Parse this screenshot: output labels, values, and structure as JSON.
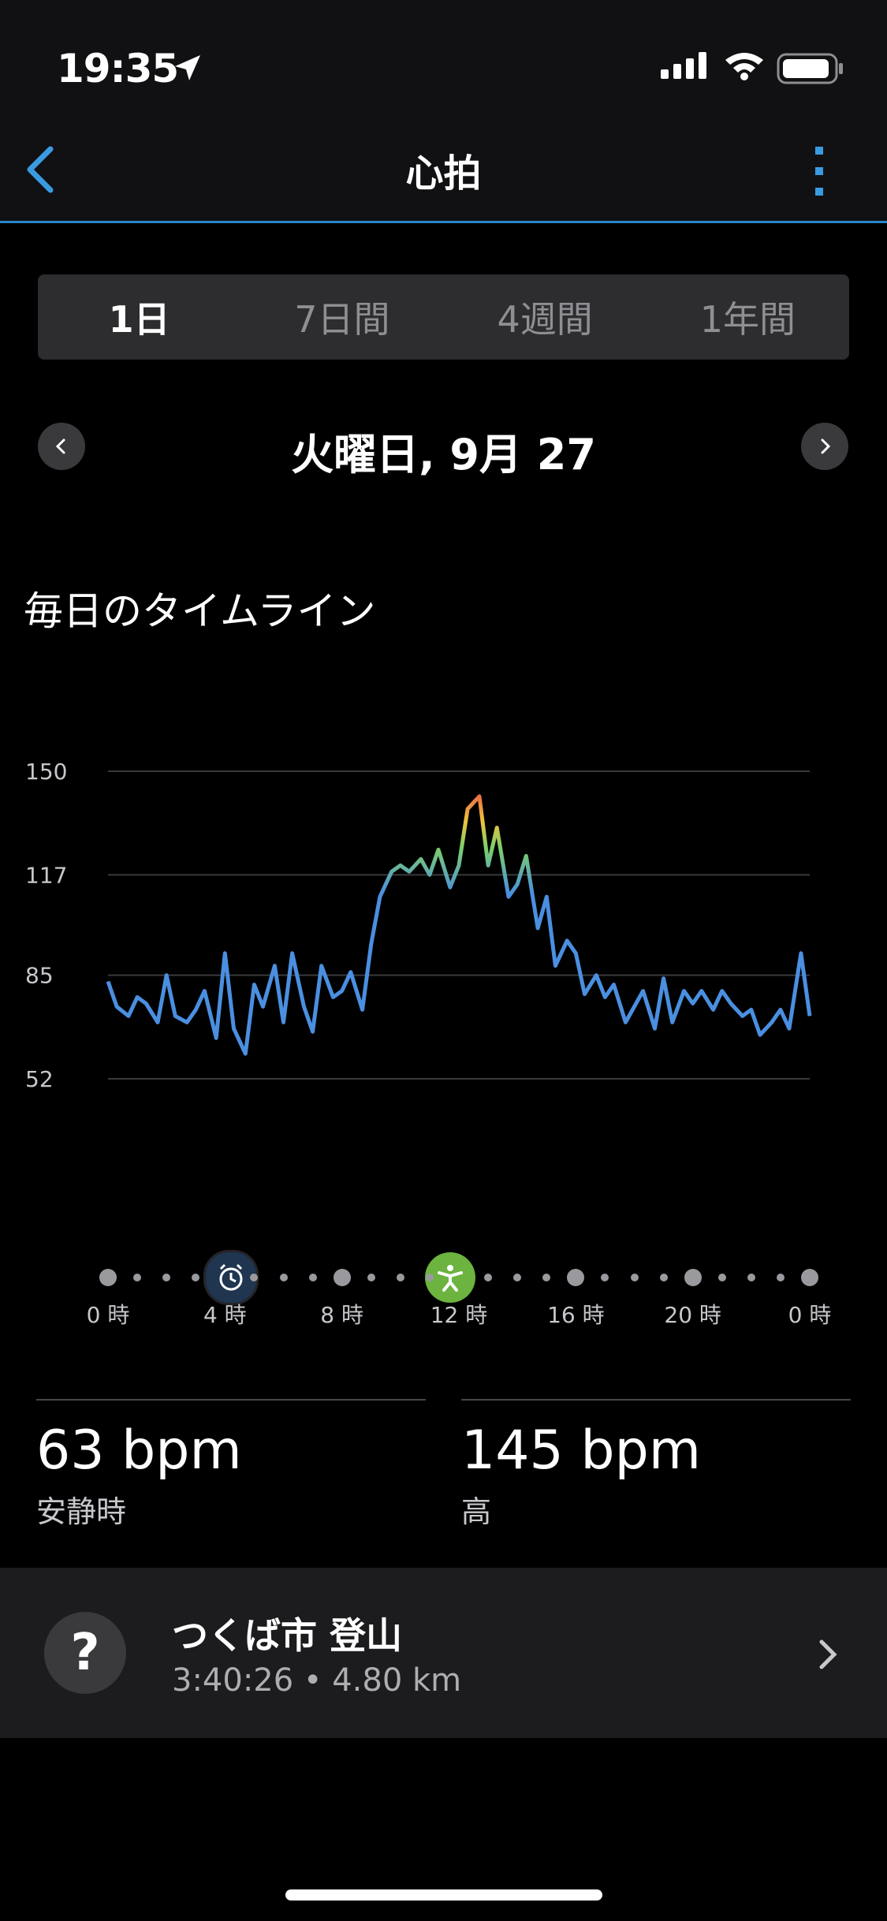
{
  "status": {
    "time": "19:35"
  },
  "nav": {
    "title": "心拍"
  },
  "segments": [
    "1日",
    "7日間",
    "4週間",
    "1年間"
  ],
  "date": {
    "label": "火曜日, 9月 27"
  },
  "section_title": "毎日のタイムライン",
  "chart_data": {
    "type": "line",
    "title": "",
    "xlabel": "",
    "ylabel": "",
    "yticks": [
      150,
      117,
      85,
      52
    ],
    "ylim": [
      52,
      150
    ],
    "x_hours": [
      0,
      0.3,
      0.7,
      1,
      1.3,
      1.7,
      2,
      2.3,
      2.7,
      3,
      3.3,
      3.7,
      4,
      4.3,
      4.7,
      5,
      5.3,
      5.7,
      6,
      6.3,
      6.7,
      7,
      7.3,
      7.7,
      8,
      8.3,
      8.7,
      9,
      9.3,
      9.7,
      10,
      10.3,
      10.7,
      11,
      11.3,
      11.7,
      12,
      12.3,
      12.7,
      13,
      13.3,
      13.7,
      14,
      14.3,
      14.7,
      15,
      15.3,
      15.7,
      16,
      16.3,
      16.7,
      17,
      17.3,
      17.7,
      18,
      18.3,
      18.7,
      19,
      19.3,
      19.7,
      20,
      20.3,
      20.7,
      21,
      21.3,
      21.7,
      22,
      22.3,
      22.7,
      23,
      23.3,
      23.7,
      24
    ],
    "values": [
      83,
      75,
      72,
      78,
      76,
      70,
      85,
      72,
      70,
      74,
      80,
      65,
      92,
      68,
      60,
      82,
      75,
      88,
      70,
      92,
      75,
      67,
      88,
      78,
      80,
      86,
      74,
      95,
      110,
      118,
      120,
      118,
      122,
      117,
      125,
      113,
      120,
      138,
      142,
      120,
      132,
      110,
      114,
      123,
      100,
      110,
      88,
      96,
      92,
      79,
      85,
      78,
      82,
      70,
      75,
      80,
      68,
      84,
      70,
      80,
      76,
      80,
      74,
      80,
      76,
      72,
      74,
      66,
      70,
      74,
      68,
      92,
      72
    ],
    "colors": {
      "low": "#4a8fe0",
      "mid": "#7ccf6a",
      "high": "#e6404a"
    }
  },
  "timeline": {
    "labels": [
      "0 時",
      "4 時",
      "8 時",
      "12 時",
      "16 時",
      "20 時",
      "0 時"
    ],
    "icons": {
      "alarm": "alarm-clock-icon",
      "activity": "activity-person-icon"
    }
  },
  "stats": {
    "resting": {
      "value": "63 bpm",
      "label": "安静時"
    },
    "high": {
      "value": "145 bpm",
      "label": "高"
    }
  },
  "activity": {
    "icon_text": "?",
    "name": "つくば市 登山",
    "detail": "3:40:26 • 4.80 km"
  }
}
